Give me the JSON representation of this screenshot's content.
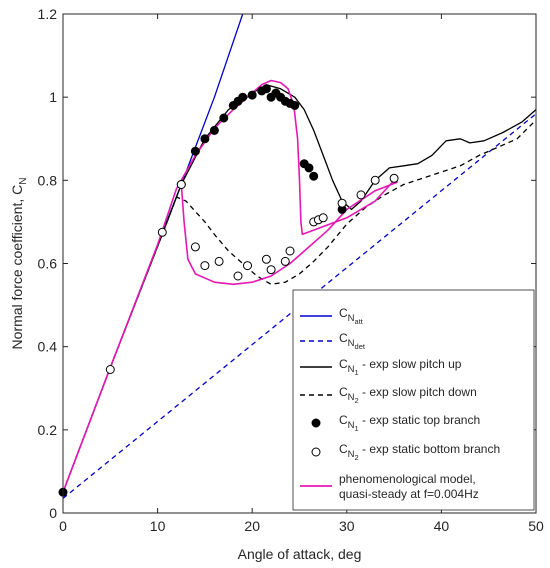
{
  "chart_data": {
    "type": "line",
    "title": "",
    "xlabel": "Angle of attack, deg",
    "ylabel": "Normal force coefficient, C",
    "ylabel_subscript": "N",
    "xlim": [
      0,
      50
    ],
    "ylim": [
      0,
      1.2
    ],
    "xticks": [
      "0",
      "10",
      "20",
      "30",
      "40",
      "50"
    ],
    "yticks": [
      "0",
      "0.2",
      "0.4",
      "0.6",
      "0.8",
      "1",
      "1.2"
    ],
    "grid": false,
    "legend_position": "bottom-right",
    "series": [
      {
        "name_main": "C",
        "name_sub": "N",
        "name_subsub": "att",
        "name_suffix": "",
        "kind": "line",
        "color": "#0000cc",
        "dash": "",
        "points": [
          [
            0,
            0.05
          ],
          [
            5,
            0.35
          ],
          [
            10,
            0.645
          ],
          [
            12.5,
            0.79
          ],
          [
            16,
            1.0
          ],
          [
            19,
            1.2
          ]
        ]
      },
      {
        "name_main": "C",
        "name_sub": "N",
        "name_subsub": "det",
        "name_suffix": "",
        "kind": "line",
        "color": "#0000cc",
        "dash": "5,4",
        "points": [
          [
            0,
            0.035
          ],
          [
            50,
            0.96
          ]
        ]
      },
      {
        "name_main": "C",
        "name_sub": "N",
        "name_subsub": "1",
        "name_suffix": " - exp slow pitch up",
        "kind": "line",
        "color": "#000000",
        "dash": "",
        "points": [
          [
            0,
            0.05
          ],
          [
            5,
            0.35
          ],
          [
            10.5,
            0.67
          ],
          [
            12.5,
            0.79
          ],
          [
            15,
            0.9
          ],
          [
            17.5,
            0.97
          ],
          [
            20,
            1.01
          ],
          [
            21.5,
            1.03
          ],
          [
            23,
            1.02
          ],
          [
            24.5,
            1.0
          ],
          [
            25.5,
            0.97
          ],
          [
            26.5,
            0.92
          ],
          [
            27.5,
            0.86
          ],
          [
            28.5,
            0.8
          ],
          [
            29.5,
            0.75
          ],
          [
            30.5,
            0.73
          ],
          [
            31.5,
            0.75
          ],
          [
            33,
            0.8
          ],
          [
            34.5,
            0.83
          ],
          [
            36,
            0.835
          ],
          [
            37.5,
            0.84
          ],
          [
            39,
            0.86
          ],
          [
            40.5,
            0.895
          ],
          [
            42,
            0.9
          ],
          [
            43,
            0.89
          ],
          [
            44.5,
            0.895
          ],
          [
            46.5,
            0.915
          ],
          [
            48.5,
            0.94
          ],
          [
            50,
            0.97
          ]
        ]
      },
      {
        "name_main": "C",
        "name_sub": "N",
        "name_subsub": "2",
        "name_suffix": " - exp slow pitch down",
        "kind": "line",
        "color": "#000000",
        "dash": "5,4",
        "points": [
          [
            0,
            0.05
          ],
          [
            5,
            0.35
          ],
          [
            10.5,
            0.67
          ],
          [
            12,
            0.76
          ],
          [
            13,
            0.75
          ],
          [
            14,
            0.725
          ],
          [
            15,
            0.7
          ],
          [
            16,
            0.67
          ],
          [
            17.5,
            0.63
          ],
          [
            19,
            0.6
          ],
          [
            20.5,
            0.57
          ],
          [
            22,
            0.55
          ],
          [
            23.5,
            0.555
          ],
          [
            25,
            0.575
          ],
          [
            26.5,
            0.605
          ],
          [
            28,
            0.64
          ],
          [
            30,
            0.695
          ],
          [
            32,
            0.735
          ],
          [
            34,
            0.765
          ],
          [
            36,
            0.79
          ],
          [
            38,
            0.805
          ],
          [
            40,
            0.82
          ],
          [
            42,
            0.835
          ],
          [
            44,
            0.86
          ],
          [
            46,
            0.88
          ],
          [
            48,
            0.9
          ],
          [
            50,
            0.945
          ]
        ]
      },
      {
        "name_main": "C",
        "name_sub": "N",
        "name_subsub": "1",
        "name_suffix": " - exp static top branch",
        "kind": "marker",
        "fill": "#000000",
        "points": [
          [
            0,
            0.05
          ],
          [
            12.5,
            0.79
          ],
          [
            14,
            0.87
          ],
          [
            15,
            0.9
          ],
          [
            16,
            0.92
          ],
          [
            17,
            0.95
          ],
          [
            18,
            0.98
          ],
          [
            18.5,
            0.99
          ],
          [
            19,
            1.0
          ],
          [
            20,
            1.005
          ],
          [
            21,
            1.015
          ],
          [
            21.5,
            1.02
          ],
          [
            22,
            1.0
          ],
          [
            22.5,
            1.01
          ],
          [
            23,
            1.0
          ],
          [
            23.5,
            0.99
          ],
          [
            24,
            0.985
          ],
          [
            24.5,
            0.98
          ],
          [
            25.5,
            0.84
          ],
          [
            26,
            0.83
          ],
          [
            26.5,
            0.81
          ],
          [
            29.5,
            0.73
          ]
        ]
      },
      {
        "name_main": "C",
        "name_sub": "N",
        "name_subsub": "2",
        "name_suffix": " - exp static bottom branch",
        "kind": "marker",
        "fill": "#ffffff",
        "points": [
          [
            5,
            0.345
          ],
          [
            10.5,
            0.675
          ],
          [
            12.5,
            0.79
          ],
          [
            14,
            0.64
          ],
          [
            15,
            0.595
          ],
          [
            16.5,
            0.605
          ],
          [
            18.5,
            0.57
          ],
          [
            19.5,
            0.595
          ],
          [
            21.5,
            0.61
          ],
          [
            22,
            0.585
          ],
          [
            23.5,
            0.605
          ],
          [
            24,
            0.63
          ],
          [
            26.5,
            0.7
          ],
          [
            27,
            0.705
          ],
          [
            27.5,
            0.71
          ],
          [
            29.5,
            0.745
          ],
          [
            31.5,
            0.765
          ],
          [
            33,
            0.8
          ],
          [
            35,
            0.805
          ]
        ]
      },
      {
        "name_main": "phenomenological model,",
        "name_sub": "",
        "name_subsub": "",
        "name_suffix": "",
        "name_line2": "quasi-steady at f=0.004Hz",
        "kind": "line",
        "color": "#e617b4",
        "dash": "",
        "points": [
          [
            0,
            0.05
          ],
          [
            5,
            0.35
          ],
          [
            10,
            0.645
          ],
          [
            12,
            0.78
          ],
          [
            14,
            0.86
          ],
          [
            16,
            0.925
          ],
          [
            18,
            0.97
          ],
          [
            20,
            1.01
          ],
          [
            21,
            1.03
          ],
          [
            22,
            1.04
          ],
          [
            23,
            1.035
          ],
          [
            23.8,
            1.02
          ],
          [
            24.4,
            0.98
          ],
          [
            24.8,
            0.9
          ],
          [
            25,
            0.8
          ],
          [
            25.15,
            0.7
          ],
          [
            25.3,
            0.67
          ],
          [
            30,
            0.71
          ],
          [
            33,
            0.75
          ],
          [
            35,
            0.8
          ],
          [
            35.3,
            0.805
          ],
          [
            35.3,
            0.795
          ],
          [
            33,
            0.775
          ],
          [
            30,
            0.73
          ],
          [
            28,
            0.68
          ],
          [
            26,
            0.64
          ],
          [
            24,
            0.6
          ],
          [
            22,
            0.57
          ],
          [
            20,
            0.555
          ],
          [
            18,
            0.55
          ],
          [
            16,
            0.555
          ],
          [
            14,
            0.575
          ],
          [
            13.2,
            0.61
          ],
          [
            12.8,
            0.7
          ],
          [
            12.5,
            0.79
          ]
        ]
      }
    ]
  }
}
